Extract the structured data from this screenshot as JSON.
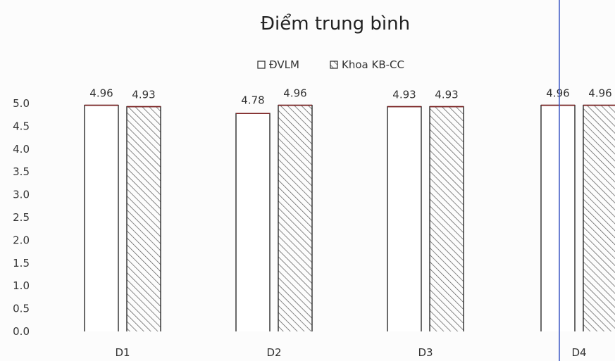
{
  "colors": {
    "bar_outline": "#2b2b2b",
    "hatch": "#555555",
    "top_edge": "#7a1f1f",
    "guide_line": "#3b56c4"
  },
  "chart_data": {
    "type": "bar",
    "title": "Điểm trung bình",
    "categories": [
      "D1",
      "D2",
      "D3",
      "D4"
    ],
    "series": [
      {
        "name": "ĐVLM",
        "values": [
          4.96,
          4.78,
          4.93,
          4.96
        ],
        "value_labels": [
          "4.96",
          "4.78",
          "4.93",
          "4.96"
        ],
        "pattern": "empty"
      },
      {
        "name": "Khoa KB-CC",
        "values": [
          4.93,
          4.96,
          4.93,
          4.96
        ],
        "value_labels": [
          "4.93",
          "4.96",
          "4.93",
          "4.96"
        ],
        "pattern": "diagonal-hatch"
      }
    ],
    "ylim": [
      0,
      5
    ],
    "yticks": [
      0,
      0.5,
      1,
      1.5,
      2,
      2.5,
      3,
      3.5,
      4,
      4.5,
      5
    ],
    "ytick_labels": [
      "0.0",
      "0.5",
      "1.0",
      "1.5",
      "2.0",
      "2.5",
      "3.0",
      "3.5",
      "4.0",
      "4.5",
      "5.0"
    ],
    "grid": false,
    "legend_position": "top-center",
    "xlabel": "",
    "ylabel": ""
  }
}
